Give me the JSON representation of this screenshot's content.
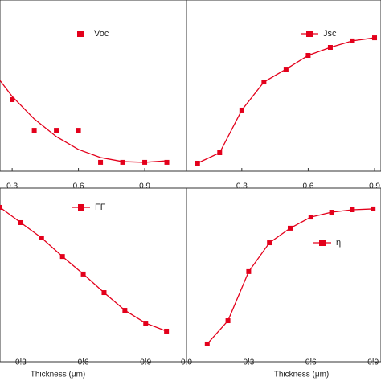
{
  "chart_data": [
    {
      "type": "scatter",
      "xlim": [
        0.245,
        1.089
      ],
      "ylim": [
        0,
        100
      ],
      "xticks": [
        0.3,
        0.6,
        0.9
      ],
      "x": [
        0.3,
        0.4,
        0.5,
        0.6,
        0.7,
        0.8,
        0.9,
        1.0
      ],
      "series": [
        {
          "name": "Voc",
          "color": "#e3001b",
          "style": "markers",
          "values": [
            41.8,
            23.9,
            23.9,
            23.9,
            5.2,
            5.2,
            5.2,
            5.2
          ]
        },
        {
          "color": "#e3001b",
          "style": "line",
          "x": [
            0.245,
            0.3,
            0.4,
            0.5,
            0.6,
            0.7,
            0.8,
            0.9,
            1.0
          ],
          "values": [
            53,
            43.7,
            30.5,
            20.2,
            12.7,
            8,
            5.6,
            5.2,
            6.1
          ]
        }
      ]
    },
    {
      "type": "line",
      "xlim": [
        0.05,
        0.929
      ],
      "ylim": [
        0,
        100
      ],
      "xticks": [
        0.3,
        0.6,
        0.9
      ],
      "x": [
        0.1,
        0.2,
        0.3,
        0.4,
        0.5,
        0.6,
        0.7,
        0.8,
        0.9
      ],
      "series": [
        {
          "name": "Jsc",
          "color": "#e3001b",
          "style": "line+markers",
          "values": [
            4.7,
            10.8,
            35.7,
            52.1,
            59.6,
            67.6,
            72.3,
            76.1,
            77.9
          ]
        }
      ]
    },
    {
      "type": "line",
      "xlim": [
        0.2,
        1.096
      ],
      "ylim": [
        0,
        100
      ],
      "xticks": [
        0.3,
        0.6,
        0.9
      ],
      "xlabel": "Thickness (μm)",
      "x": [
        0.2,
        0.3,
        0.4,
        0.5,
        0.6,
        0.7,
        0.8,
        0.9,
        1.0
      ],
      "series": [
        {
          "name": "FF",
          "color": "#e3001b",
          "style": "line+markers",
          "values": [
            88.9,
            80.1,
            71.3,
            60.6,
            50.5,
            39.8,
            29.6,
            22.2,
            17.6
          ]
        }
      ]
    },
    {
      "type": "line",
      "xlim": [
        0,
        0.938
      ],
      "ylim": [
        0,
        100
      ],
      "xticks": [
        {
          "value": 0,
          "label": "0.0"
        },
        0.3,
        0.6,
        0.9
      ],
      "xlabel": "Thickness (μm)",
      "x": [
        0.1,
        0.2,
        0.3,
        0.4,
        0.5,
        0.6,
        0.7,
        0.8,
        0.9
      ],
      "series": [
        {
          "name": "η",
          "color": "#e3001b",
          "style": "line+markers",
          "values": [
            10.2,
            23.6,
            51.9,
            68.5,
            76.9,
            83.3,
            86.1,
            87.5,
            88.0
          ]
        }
      ]
    }
  ]
}
